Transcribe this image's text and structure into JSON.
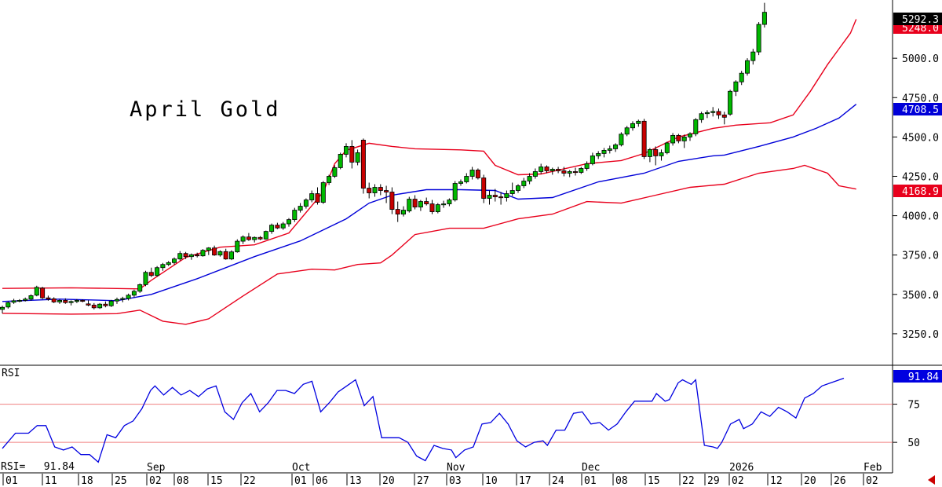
{
  "chart_data": {
    "type": "candlestick",
    "title": "April Gold",
    "indicators": {
      "bollinger_bands": {
        "upper_color": "#e8001c",
        "middle_color": "#0000d8",
        "lower_color": "#e8001c"
      },
      "rsi": {
        "label": "RSI",
        "readout": "RSI=   91.84",
        "levels": [
          50,
          75
        ],
        "ylim": [
          30,
          100
        ],
        "line_color": "#0000e0",
        "level_color": "#f08080"
      }
    },
    "price_axis": {
      "ylim": [
        3050,
        5370
      ],
      "ticks": [
        "5000.0",
        "4750.0",
        "4500.0",
        "4250.0",
        "4000.0",
        "3750.0",
        "3500.0",
        "3250.0"
      ]
    },
    "rsi_axis": {
      "ticks": [
        "75",
        "50"
      ]
    },
    "price_tags": [
      {
        "value": "5292.3",
        "color": "#000000"
      },
      {
        "value": "5248.0",
        "color": "#e8001c"
      },
      {
        "value": "4708.5",
        "color": "#0000d8"
      },
      {
        "value": "4168.9",
        "color": "#e8001c"
      }
    ],
    "rsi_tag": {
      "value": "91.84",
      "color": "#0000e0"
    },
    "x_day_labels": [
      "01",
      "11",
      "18",
      "25",
      "02",
      "08",
      "15",
      "22",
      "01",
      "06",
      "13",
      "20",
      "27",
      "03",
      "10",
      "17",
      "24",
      "01",
      "08",
      "15",
      "22",
      "29",
      "02",
      "12",
      "20",
      "26",
      "02"
    ],
    "x_month_labels": [
      "Sep",
      "Oct",
      "Nov",
      "Dec",
      "2026",
      "Feb"
    ],
    "candles": [
      [
        3405,
        3428,
        3380,
        3418
      ],
      [
        3420,
        3455,
        3410,
        3448
      ],
      [
        3450,
        3472,
        3440,
        3460
      ],
      [
        3458,
        3470,
        3450,
        3462
      ],
      [
        3462,
        3480,
        3455,
        3470
      ],
      [
        3470,
        3500,
        3460,
        3492
      ],
      [
        3495,
        3555,
        3488,
        3545
      ],
      [
        3540,
        3548,
        3470,
        3478
      ],
      [
        3478,
        3492,
        3460,
        3470
      ],
      [
        3472,
        3482,
        3445,
        3452
      ],
      [
        3452,
        3470,
        3440,
        3462
      ],
      [
        3462,
        3475,
        3440,
        3448
      ],
      [
        3448,
        3462,
        3430,
        3455
      ],
      [
        3455,
        3470,
        3445,
        3462
      ],
      [
        3462,
        3468,
        3450,
        3458
      ],
      [
        3440,
        3462,
        3425,
        3432
      ],
      [
        3432,
        3445,
        3405,
        3415
      ],
      [
        3415,
        3445,
        3408,
        3438
      ],
      [
        3438,
        3455,
        3418,
        3428
      ],
      [
        3428,
        3465,
        3420,
        3458
      ],
      [
        3458,
        3480,
        3440,
        3468
      ],
      [
        3468,
        3485,
        3450,
        3474
      ],
      [
        3474,
        3505,
        3462,
        3495
      ],
      [
        3495,
        3530,
        3482,
        3520
      ],
      [
        3520,
        3570,
        3510,
        3562
      ],
      [
        3562,
        3650,
        3552,
        3640
      ],
      [
        3640,
        3670,
        3610,
        3620
      ],
      [
        3620,
        3680,
        3612,
        3670
      ],
      [
        3670,
        3700,
        3650,
        3690
      ],
      [
        3690,
        3712,
        3680,
        3702
      ],
      [
        3702,
        3735,
        3690,
        3725
      ],
      [
        3725,
        3775,
        3715,
        3760
      ],
      [
        3760,
        3770,
        3725,
        3740
      ],
      [
        3740,
        3760,
        3720,
        3752
      ],
      [
        3752,
        3765,
        3735,
        3745
      ],
      [
        3745,
        3788,
        3740,
        3780
      ],
      [
        3780,
        3800,
        3750,
        3795
      ],
      [
        3795,
        3810,
        3745,
        3750
      ],
      [
        3750,
        3780,
        3740,
        3772
      ],
      [
        3772,
        3790,
        3720,
        3725
      ],
      [
        3725,
        3780,
        3718,
        3770
      ],
      [
        3770,
        3850,
        3765,
        3838
      ],
      [
        3838,
        3875,
        3820,
        3865
      ],
      [
        3865,
        3890,
        3840,
        3848
      ],
      [
        3848,
        3868,
        3830,
        3862
      ],
      [
        3862,
        3870,
        3845,
        3852
      ],
      [
        3852,
        3905,
        3848,
        3900
      ],
      [
        3900,
        3950,
        3885,
        3940
      ],
      [
        3940,
        3955,
        3915,
        3922
      ],
      [
        3922,
        3960,
        3910,
        3948
      ],
      [
        3948,
        3985,
        3930,
        3975
      ],
      [
        3975,
        4050,
        3960,
        4035
      ],
      [
        4035,
        4080,
        4020,
        4060
      ],
      [
        4060,
        4110,
        4045,
        4100
      ],
      [
        4100,
        4160,
        4085,
        4140
      ],
      [
        4140,
        4180,
        4070,
        4085
      ],
      [
        4085,
        4220,
        4075,
        4210
      ],
      [
        4210,
        4260,
        4195,
        4250
      ],
      [
        4250,
        4320,
        4240,
        4305
      ],
      [
        4305,
        4400,
        4295,
        4390
      ],
      [
        4390,
        4460,
        4370,
        4440
      ],
      [
        4440,
        4480,
        4300,
        4340
      ],
      [
        4340,
        4420,
        4320,
        4400
      ],
      [
        4480,
        4490,
        4140,
        4175
      ],
      [
        4175,
        4210,
        4110,
        4145
      ],
      [
        4145,
        4200,
        4120,
        4180
      ],
      [
        4180,
        4200,
        4130,
        4160
      ],
      [
        4160,
        4190,
        4080,
        4150
      ],
      [
        4150,
        4180,
        4010,
        4040
      ],
      [
        4040,
        4090,
        3960,
        4010
      ],
      [
        4010,
        4060,
        3995,
        4035
      ],
      [
        4030,
        4120,
        4020,
        4105
      ],
      [
        4105,
        4130,
        4040,
        4055
      ],
      [
        4055,
        4100,
        4030,
        4090
      ],
      [
        4090,
        4115,
        4065,
        4075
      ],
      [
        4075,
        4100,
        4010,
        4025
      ],
      [
        4025,
        4080,
        4015,
        4070
      ],
      [
        4070,
        4095,
        4050,
        4075
      ],
      [
        4075,
        4110,
        4060,
        4100
      ],
      [
        4100,
        4220,
        4090,
        4205
      ],
      [
        4205,
        4230,
        4190,
        4215
      ],
      [
        4215,
        4270,
        4205,
        4250
      ],
      [
        4250,
        4310,
        4230,
        4290
      ],
      [
        4290,
        4300,
        4230,
        4240
      ],
      [
        4240,
        4260,
        4080,
        4110
      ],
      [
        4110,
        4160,
        4070,
        4130
      ],
      [
        4130,
        4170,
        4090,
        4120
      ],
      [
        4120,
        4150,
        4070,
        4115
      ],
      [
        4115,
        4160,
        4090,
        4140
      ],
      [
        4140,
        4210,
        4125,
        4160
      ],
      [
        4160,
        4200,
        4145,
        4190
      ],
      [
        4190,
        4240,
        4175,
        4220
      ],
      [
        4220,
        4270,
        4200,
        4250
      ],
      [
        4250,
        4300,
        4235,
        4280
      ],
      [
        4280,
        4330,
        4265,
        4310
      ],
      [
        4310,
        4320,
        4270,
        4285
      ],
      [
        4285,
        4305,
        4260,
        4295
      ],
      [
        4295,
        4310,
        4270,
        4285
      ],
      [
        4285,
        4310,
        4250,
        4270
      ],
      [
        4270,
        4290,
        4245,
        4280
      ],
      [
        4280,
        4305,
        4255,
        4275
      ],
      [
        4275,
        4310,
        4265,
        4300
      ],
      [
        4300,
        4345,
        4285,
        4330
      ],
      [
        4330,
        4400,
        4320,
        4380
      ],
      [
        4380,
        4410,
        4360,
        4395
      ],
      [
        4395,
        4430,
        4370,
        4415
      ],
      [
        4415,
        4445,
        4395,
        4425
      ],
      [
        4425,
        4460,
        4405,
        4450
      ],
      [
        4450,
        4530,
        4440,
        4518
      ],
      [
        4518,
        4570,
        4505,
        4558
      ],
      [
        4558,
        4600,
        4540,
        4585
      ],
      [
        4585,
        4610,
        4565,
        4600
      ],
      [
        4600,
        4615,
        4360,
        4375
      ],
      [
        4375,
        4430,
        4340,
        4420
      ],
      [
        4420,
        4440,
        4320,
        4380
      ],
      [
        4380,
        4420,
        4350,
        4400
      ],
      [
        4400,
        4470,
        4390,
        4462
      ],
      [
        4462,
        4525,
        4445,
        4510
      ],
      [
        4510,
        4520,
        4460,
        4475
      ],
      [
        4475,
        4515,
        4430,
        4500
      ],
      [
        4500,
        4530,
        4475,
        4520
      ],
      [
        4520,
        4620,
        4505,
        4610
      ],
      [
        4610,
        4660,
        4590,
        4648
      ],
      [
        4648,
        4670,
        4620,
        4655
      ],
      [
        4655,
        4690,
        4630,
        4662
      ],
      [
        4662,
        4680,
        4615,
        4640
      ],
      [
        4640,
        4660,
        4580,
        4625
      ],
      [
        4645,
        4800,
        4635,
        4790
      ],
      [
        4790,
        4860,
        4760,
        4850
      ],
      [
        4850,
        4920,
        4830,
        4905
      ],
      [
        4905,
        5000,
        4890,
        4985
      ],
      [
        4985,
        5060,
        4960,
        5040
      ],
      [
        5040,
        5230,
        5020,
        5215
      ],
      [
        5215,
        5352,
        5195,
        5292
      ]
    ],
    "bb_upper": [
      [
        0,
        3538
      ],
      [
        12,
        3542
      ],
      [
        24,
        3535
      ],
      [
        26,
        3590
      ],
      [
        32,
        3735
      ],
      [
        38,
        3800
      ],
      [
        44,
        3815
      ],
      [
        50,
        3890
      ],
      [
        56,
        4150
      ],
      [
        58,
        4330
      ],
      [
        60,
        4415
      ],
      [
        64,
        4460
      ],
      [
        68,
        4440
      ],
      [
        72,
        4425
      ],
      [
        80,
        4418
      ],
      [
        84,
        4410
      ],
      [
        86,
        4320
      ],
      [
        90,
        4260
      ],
      [
        94,
        4265
      ],
      [
        102,
        4330
      ],
      [
        108,
        4350
      ],
      [
        112,
        4395
      ],
      [
        118,
        4500
      ],
      [
        124,
        4555
      ],
      [
        128,
        4575
      ],
      [
        134,
        4590
      ],
      [
        138,
        4640
      ],
      [
        141,
        4790
      ],
      [
        144,
        4960
      ],
      [
        146,
        5060
      ],
      [
        148,
        5160
      ],
      [
        149,
        5248
      ]
    ],
    "bb_middle": [
      [
        0,
        3455
      ],
      [
        10,
        3470
      ],
      [
        20,
        3460
      ],
      [
        26,
        3500
      ],
      [
        34,
        3600
      ],
      [
        44,
        3740
      ],
      [
        52,
        3840
      ],
      [
        60,
        3980
      ],
      [
        64,
        4080
      ],
      [
        68,
        4130
      ],
      [
        74,
        4165
      ],
      [
        80,
        4165
      ],
      [
        86,
        4160
      ],
      [
        90,
        4105
      ],
      [
        96,
        4115
      ],
      [
        104,
        4215
      ],
      [
        112,
        4270
      ],
      [
        118,
        4345
      ],
      [
        124,
        4380
      ],
      [
        126,
        4385
      ],
      [
        132,
        4440
      ],
      [
        138,
        4500
      ],
      [
        142,
        4555
      ],
      [
        146,
        4620
      ],
      [
        149,
        4708
      ]
    ],
    "bb_lower": [
      [
        0,
        3380
      ],
      [
        12,
        3375
      ],
      [
        20,
        3378
      ],
      [
        24,
        3400
      ],
      [
        28,
        3330
      ],
      [
        32,
        3310
      ],
      [
        36,
        3345
      ],
      [
        42,
        3490
      ],
      [
        48,
        3630
      ],
      [
        54,
        3660
      ],
      [
        58,
        3655
      ],
      [
        62,
        3690
      ],
      [
        66,
        3700
      ],
      [
        68,
        3750
      ],
      [
        72,
        3880
      ],
      [
        78,
        3920
      ],
      [
        84,
        3920
      ],
      [
        90,
        3980
      ],
      [
        96,
        4010
      ],
      [
        102,
        4090
      ],
      [
        108,
        4080
      ],
      [
        114,
        4130
      ],
      [
        120,
        4180
      ],
      [
        126,
        4200
      ],
      [
        132,
        4270
      ],
      [
        138,
        4300
      ],
      [
        140,
        4320
      ],
      [
        144,
        4270
      ],
      [
        146,
        4190
      ],
      [
        149,
        4169
      ]
    ],
    "rsi_values": [
      [
        0,
        46
      ],
      [
        3,
        56
      ],
      [
        6,
        56
      ],
      [
        8,
        61
      ],
      [
        10,
        61
      ],
      [
        12,
        47
      ],
      [
        14,
        45
      ],
      [
        16,
        47
      ],
      [
        18,
        42
      ],
      [
        20,
        42
      ],
      [
        22,
        37
      ],
      [
        24,
        55
      ],
      [
        26,
        53
      ],
      [
        28,
        61
      ],
      [
        30,
        64
      ],
      [
        32,
        72
      ],
      [
        34,
        84
      ],
      [
        35,
        87
      ],
      [
        37,
        81
      ],
      [
        39,
        86
      ],
      [
        41,
        81
      ],
      [
        43,
        84
      ],
      [
        45,
        80
      ],
      [
        47,
        85
      ],
      [
        49,
        87
      ],
      [
        51,
        70
      ],
      [
        53,
        65
      ],
      [
        55,
        76
      ],
      [
        57,
        82
      ],
      [
        59,
        70
      ],
      [
        61,
        76
      ],
      [
        63,
        84
      ],
      [
        65,
        84
      ],
      [
        67,
        82
      ],
      [
        69,
        88
      ],
      [
        71,
        90
      ],
      [
        73,
        70
      ],
      [
        75,
        76
      ],
      [
        77,
        83
      ],
      [
        79,
        87
      ],
      [
        81,
        91
      ],
      [
        83,
        74
      ],
      [
        85,
        80
      ],
      [
        87,
        53
      ],
      [
        89,
        53
      ],
      [
        91,
        53
      ],
      [
        93,
        50
      ],
      [
        95,
        41
      ],
      [
        97,
        38
      ],
      [
        99,
        48
      ],
      [
        101,
        46
      ],
      [
        103,
        45
      ],
      [
        104,
        40
      ],
      [
        106,
        45
      ],
      [
        108,
        47
      ],
      [
        110,
        62
      ],
      [
        112,
        63
      ],
      [
        114,
        69
      ],
      [
        116,
        62
      ],
      [
        118,
        51
      ],
      [
        120,
        47
      ],
      [
        122,
        50
      ],
      [
        124,
        51
      ],
      [
        125,
        48
      ],
      [
        127,
        58
      ],
      [
        129,
        58
      ],
      [
        131,
        69
      ],
      [
        133,
        70
      ],
      [
        135,
        62
      ],
      [
        137,
        63
      ],
      [
        139,
        58
      ],
      [
        141,
        62
      ],
      [
        143,
        70
      ],
      [
        145,
        77
      ],
      [
        147,
        77
      ],
      [
        149,
        77
      ]
    ],
    "rsi_tail": [
      [
        150,
        82
      ],
      [
        152,
        77
      ],
      [
        153,
        78
      ],
      [
        155,
        89
      ],
      [
        156,
        91
      ],
      [
        158,
        88
      ],
      [
        159,
        91
      ],
      [
        161,
        48
      ],
      [
        163,
        47
      ],
      [
        164,
        46
      ],
      [
        165,
        50
      ],
      [
        167,
        62
      ],
      [
        169,
        65
      ],
      [
        170,
        59
      ],
      [
        172,
        62
      ],
      [
        174,
        70
      ],
      [
        176,
        67
      ],
      [
        178,
        73
      ],
      [
        180,
        70
      ],
      [
        182,
        66
      ],
      [
        184,
        79
      ],
      [
        186,
        82
      ],
      [
        188,
        87
      ],
      [
        190,
        89
      ],
      [
        192,
        91
      ],
      [
        193,
        92
      ]
    ]
  }
}
